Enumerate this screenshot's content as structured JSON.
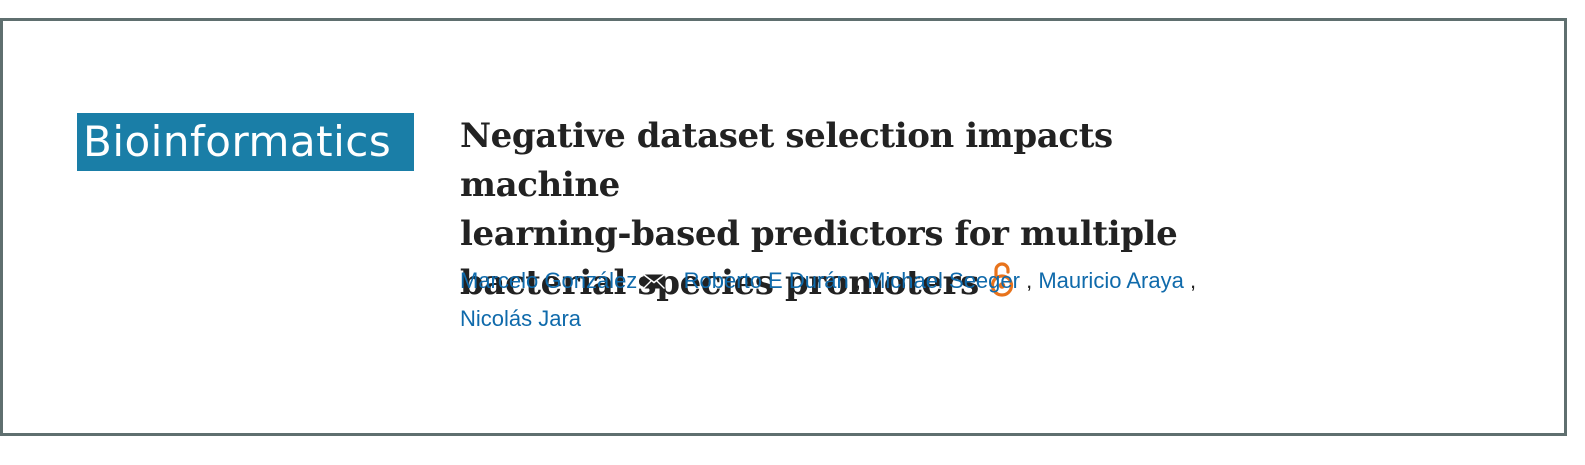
{
  "journal": {
    "name": "Bioinformatics",
    "logo_bg": "#1a7ea7"
  },
  "article": {
    "title_lines": [
      "Negative dataset selection impacts machine",
      "learning-based predictors for multiple",
      "bacterial species promoters"
    ],
    "open_access_icon": "open-access-lock-icon",
    "open_access_color": "#e8731c"
  },
  "authors": [
    {
      "name": "Marcelo González",
      "corresponding": true
    },
    {
      "name": "Roberto E Durán",
      "corresponding": false
    },
    {
      "name": "Michael Seeger",
      "corresponding": false
    },
    {
      "name": "Mauricio Araya",
      "corresponding": false
    },
    {
      "name": "Nicolás Jara",
      "corresponding": false
    }
  ],
  "icons": {
    "corresponding": "envelope-icon"
  },
  "colors": {
    "link": "#0f6aab",
    "title": "#222222",
    "border": "#5f6f6f"
  }
}
